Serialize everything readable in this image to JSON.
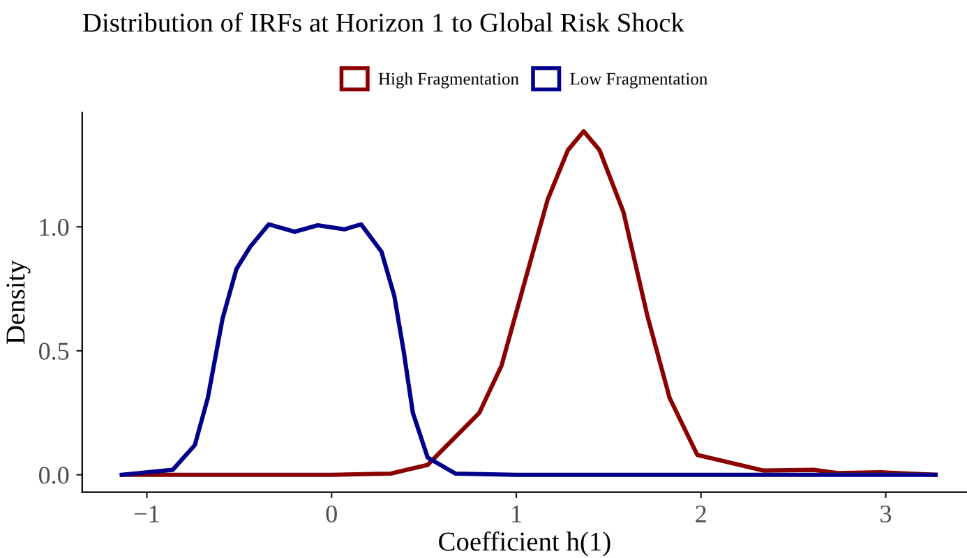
{
  "chart_data": {
    "type": "line",
    "title": "Distribution of IRFs at Horizon 1 to Global Risk Shock",
    "xlabel": "Coefficient h(1)",
    "ylabel": "Density",
    "series": [
      {
        "name": "High Fragmentation",
        "color": "#8b0000",
        "x": [
          -1.13,
          0.0,
          0.32,
          0.52,
          0.8,
          0.92,
          1.05,
          1.17,
          1.28,
          1.365,
          1.45,
          1.58,
          1.71,
          1.83,
          1.98,
          2.34,
          2.61,
          2.74,
          2.97,
          3.27
        ],
        "values": [
          0,
          0,
          0.005,
          0.04,
          0.25,
          0.44,
          0.79,
          1.11,
          1.31,
          1.385,
          1.31,
          1.06,
          0.64,
          0.31,
          0.08,
          0.017,
          0.02,
          0.007,
          0.01,
          0
        ]
      },
      {
        "name": "Low Fragmentation",
        "color": "#00008b",
        "x": [
          -1.136,
          -0.86,
          -0.74,
          -0.67,
          -0.59,
          -0.515,
          -0.44,
          -0.34,
          -0.2,
          -0.075,
          0.07,
          0.16,
          0.27,
          0.34,
          0.39,
          0.44,
          0.52,
          0.67,
          1.0,
          3.27
        ],
        "values": [
          0,
          0.02,
          0.12,
          0.31,
          0.63,
          0.83,
          0.92,
          1.01,
          0.98,
          1.006,
          0.99,
          1.01,
          0.9,
          0.72,
          0.5,
          0.25,
          0.07,
          0.005,
          0,
          0
        ]
      }
    ],
    "xlim": [
      -1.35,
      3.44
    ],
    "ylim": [
      -0.07,
      1.46
    ],
    "xticks": [
      {
        "value": -1,
        "label": "−1"
      },
      0,
      1,
      2,
      3
    ],
    "yticks": [
      {
        "value": 0,
        "label": "0.0"
      },
      {
        "value": 0.5,
        "label": "0.5"
      },
      {
        "value": 1,
        "label": "1.0"
      }
    ],
    "legend": "top",
    "grid": false,
    "marker": "none",
    "line_style": "solid"
  }
}
